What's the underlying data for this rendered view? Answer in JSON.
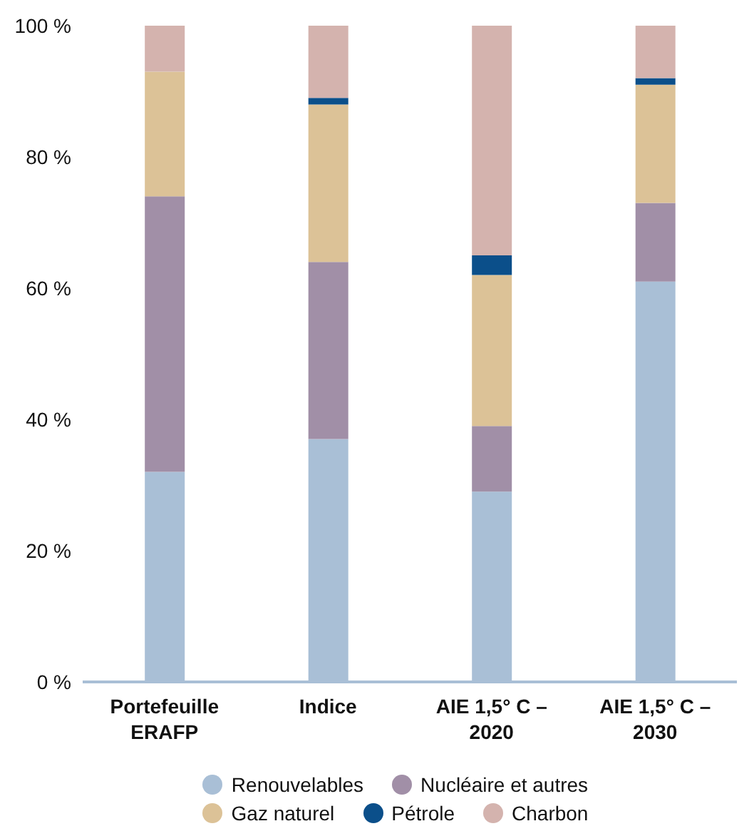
{
  "chart_data": {
    "type": "bar",
    "stacked": true,
    "categories": [
      "Portefeuille ERAFP",
      "Indice",
      "AIE 1,5° C – 2020",
      "AIE 1,5° C – 2030"
    ],
    "series": [
      {
        "name": "Renouvelables",
        "color": "#a9bfd6",
        "values": [
          32,
          37,
          29,
          61
        ]
      },
      {
        "name": "Nucléaire et autres",
        "color": "#a18fa7",
        "values": [
          42,
          27,
          10,
          12
        ]
      },
      {
        "name": "Gaz naturel",
        "color": "#dcc297",
        "values": [
          19,
          24,
          23,
          18
        ]
      },
      {
        "name": "Pétrole",
        "color": "#0b4f8a",
        "values": [
          0,
          1,
          3,
          1
        ]
      },
      {
        "name": "Charbon",
        "color": "#d4b3ae",
        "values": [
          7,
          11,
          35,
          8
        ]
      }
    ],
    "ylim": [
      0,
      100
    ],
    "yticks": [
      {
        "value": 0,
        "label": "0 %"
      },
      {
        "value": 20,
        "label": "20 %"
      },
      {
        "value": 40,
        "label": "40 %"
      },
      {
        "value": 60,
        "label": "60 %"
      },
      {
        "value": 80,
        "label": "80 %"
      },
      {
        "value": 100,
        "label": "100 %"
      }
    ],
    "grid": false,
    "legend": "bottom"
  }
}
